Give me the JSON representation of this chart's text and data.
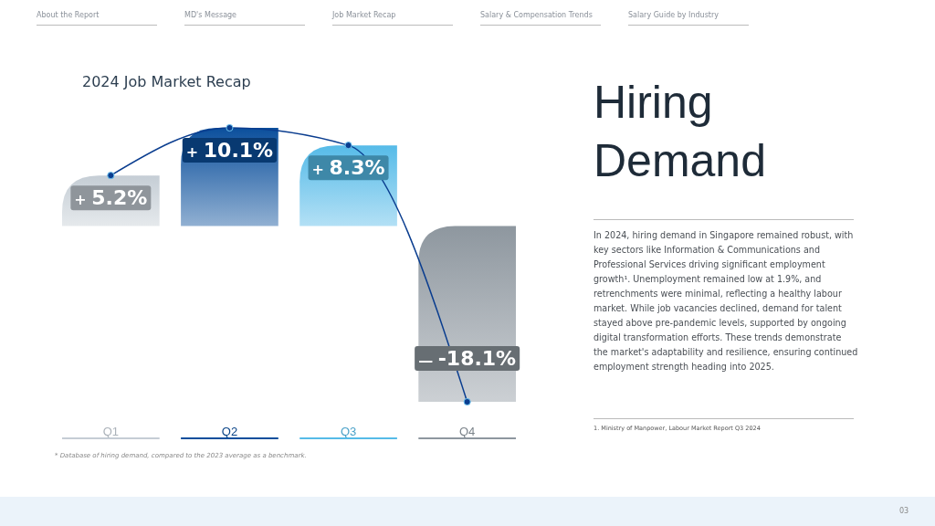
{
  "chart_data": {
    "type": "bar",
    "title": "2024 Job Market Recap",
    "subtitle": "Hiring Demand",
    "categories": [
      "Q1",
      "Q2",
      "Q3",
      "Q4"
    ],
    "colors": [
      "#c5cdd5",
      "#0b4f9c",
      "#56bbe8",
      "#8e979f"
    ],
    "series": [
      {
        "values": [
          5.2,
          10.1,
          8.3,
          -18.1
        ],
        "value_labels": [
          "+ 5.2%",
          "+ 10.1%",
          "+ 8.3%",
          "— -18.1%"
        ]
      },
      {
        "type": "line",
        "color": "#0a3d8f",
        "values": [
          5.2,
          10.1,
          8.3,
          -18.1
        ],
        "marker": "circle"
      }
    ],
    "tick_labels": "x",
    "annotations": [
      "About the Report",
      "MD's Message",
      "Job Market Recap",
      "Salary & Compensation Trends",
      "Salary Guide by Industry",
      "In 2024, hiring demand in Singapore remained robust, with key sectors like Information & Communications and Professional Services driving significant employment growth¹. Unemployment remained low at 1.9%, and retrenchments were minimal, reflecting a healthy labour market. While job vacancies declined, demand for talent stayed above pre-pandemic levels, supported by ongoing digital transformation efforts. These trends demonstrate the market's adaptability and resilience, ensuring continued employment strength heading into 2025.",
      "1. Ministry of Manpower, Labour Market Report Q3 2024",
      "* Database of hiring demand, compared to the 2023 average as a benchmark.",
      "03"
    ]
  }
}
